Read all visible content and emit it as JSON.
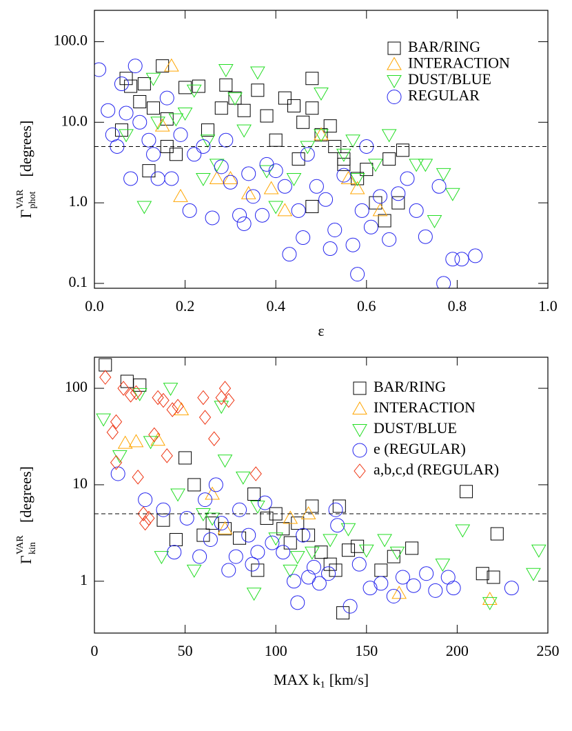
{
  "chart_data": [
    {
      "type": "scatter",
      "xlabel": "ε",
      "ylabel": {
        "text": "Γ",
        "sup": "VAR",
        "sub": "phot",
        "unit": "[degrees]"
      },
      "log_y": true,
      "xlim": [
        0,
        1
      ],
      "ylim": [
        0.087,
        245
      ],
      "xticks": [
        {
          "value": 0,
          "label": "0.0"
        },
        0.2,
        0.4,
        0.6,
        0.8,
        {
          "value": 1,
          "label": "1.0"
        }
      ],
      "yticks": [
        {
          "value": 0.1,
          "label": "0.1"
        },
        {
          "value": 1,
          "label": "1.0"
        },
        {
          "value": 10,
          "label": "10.0"
        },
        {
          "value": 100,
          "label": "100.0"
        }
      ],
      "reference_line": 5,
      "legend": "upper right",
      "series": [
        {
          "name": "BAR/RING",
          "color": "#000000",
          "marker": "square",
          "x": [
            0.06,
            0.07,
            0.08,
            0.1,
            0.11,
            0.13,
            0.15,
            0.16,
            0.16,
            0.18,
            0.2,
            0.23,
            0.25,
            0.28,
            0.29,
            0.31,
            0.33,
            0.36,
            0.38,
            0.4,
            0.42,
            0.44,
            0.45,
            0.46,
            0.48,
            0.48,
            0.5,
            0.52,
            0.53,
            0.55,
            0.58,
            0.6,
            0.62,
            0.64,
            0.65,
            0.67,
            0.68,
            0.48,
            0.12,
            0.55
          ],
          "values": [
            8,
            35,
            28,
            18,
            30,
            15,
            50,
            11,
            5,
            4,
            27,
            28,
            8,
            15,
            29,
            20,
            14,
            25,
            12,
            6,
            20,
            16,
            3.5,
            10,
            35,
            15,
            7,
            9,
            5,
            3,
            2,
            2.6,
            1,
            0.6,
            3.5,
            1,
            4.5,
            0.9,
            2.5,
            3.5
          ]
        },
        {
          "name": "INTERACTION",
          "color": "#ffa500",
          "marker": "triangle-up",
          "x": [
            0.17,
            0.19,
            0.15,
            0.27,
            0.3,
            0.34,
            0.39,
            0.42,
            0.5,
            0.56,
            0.63,
            0.58
          ],
          "values": [
            50,
            1.2,
            9,
            2,
            2,
            1.3,
            1.5,
            0.8,
            7,
            2,
            0.8,
            1.5
          ]
        },
        {
          "name": "DUST/BLUE",
          "color": "#22dd22",
          "marker": "triangle-down",
          "x": [
            0.07,
            0.11,
            0.13,
            0.14,
            0.2,
            0.22,
            0.25,
            0.29,
            0.31,
            0.33,
            0.36,
            0.38,
            0.4,
            0.44,
            0.47,
            0.5,
            0.5,
            0.55,
            0.57,
            0.58,
            0.62,
            0.65,
            0.71,
            0.73,
            0.77,
            0.79,
            0.24,
            0.27,
            0.18,
            0.75
          ],
          "values": [
            7,
            0.9,
            35,
            10,
            13,
            25,
            6,
            45,
            20,
            8,
            42,
            2.5,
            0.9,
            2,
            5,
            23,
            7,
            4,
            6,
            2,
            3,
            7,
            3,
            3,
            2.3,
            1.3,
            2,
            3,
            11,
            0.6
          ]
        },
        {
          "name": "REGULAR",
          "color": "#2222ee",
          "marker": "circle",
          "x": [
            0.01,
            0.03,
            0.04,
            0.05,
            0.06,
            0.07,
            0.08,
            0.09,
            0.1,
            0.12,
            0.13,
            0.14,
            0.16,
            0.17,
            0.19,
            0.21,
            0.22,
            0.24,
            0.26,
            0.28,
            0.29,
            0.3,
            0.32,
            0.33,
            0.34,
            0.35,
            0.37,
            0.38,
            0.4,
            0.42,
            0.43,
            0.45,
            0.46,
            0.47,
            0.49,
            0.51,
            0.52,
            0.53,
            0.55,
            0.57,
            0.58,
            0.59,
            0.61,
            0.63,
            0.65,
            0.67,
            0.69,
            0.71,
            0.73,
            0.76,
            0.77,
            0.79,
            0.81,
            0.84,
            0.6
          ],
          "values": [
            45,
            14,
            7,
            5,
            30,
            13,
            2,
            50,
            10,
            6,
            4,
            2,
            20,
            2,
            7,
            0.8,
            4,
            5,
            0.65,
            2.8,
            6,
            1.8,
            0.7,
            0.55,
            2.3,
            1.2,
            0.7,
            3,
            2.5,
            1.6,
            0.23,
            0.8,
            0.37,
            4,
            1.6,
            1.1,
            0.27,
            0.46,
            2.2,
            0.3,
            0.13,
            0.8,
            0.5,
            1.2,
            0.35,
            1.3,
            2,
            0.8,
            0.38,
            1.6,
            0.1,
            0.2,
            0.2,
            0.22,
            5
          ]
        }
      ]
    },
    {
      "type": "scatter",
      "xlabel": {
        "text": "MAX k",
        "sub": "1",
        "unit": "[km/s]"
      },
      "ylabel": {
        "text": "Γ",
        "sup": "VAR",
        "sub": "kin",
        "unit": "[degrees]"
      },
      "log_y": true,
      "xlim": [
        0,
        250
      ],
      "ylim": [
        0.29,
        210
      ],
      "xticks": [
        0,
        50,
        100,
        150,
        200,
        250
      ],
      "yticks": [
        1,
        10,
        100
      ],
      "reference_line": 5,
      "legend": "upper right",
      "series": [
        {
          "name": "BAR/RING",
          "color": "#000000",
          "marker": "square",
          "x": [
            6,
            18,
            25,
            38,
            45,
            50,
            55,
            60,
            65,
            72,
            80,
            88,
            90,
            95,
            100,
            104,
            108,
            112,
            118,
            120,
            125,
            130,
            133,
            135,
            137,
            140,
            145,
            158,
            165,
            175,
            205,
            214,
            220,
            222
          ],
          "values": [
            175,
            118,
            108,
            4.3,
            2.7,
            19,
            10,
            3,
            4,
            3.5,
            2.8,
            8,
            1.3,
            4.5,
            5,
            3.5,
            2.5,
            4,
            3,
            6,
            2,
            1.5,
            1.3,
            6,
            0.47,
            2.1,
            2.3,
            1.3,
            1.8,
            2.2,
            8.5,
            1.2,
            1.1,
            3.1
          ]
        },
        {
          "name": "INTERACTION",
          "color": "#ffa500",
          "marker": "triangle-up",
          "x": [
            17,
            23,
            35,
            48,
            65,
            72,
            108,
            118,
            168,
            218
          ],
          "values": [
            27,
            28,
            29,
            60,
            8,
            3.5,
            4.5,
            5,
            0.75,
            0.65
          ]
        },
        {
          "name": "DUST/BLUE",
          "color": "#22dd22",
          "marker": "triangle-down",
          "x": [
            5,
            14,
            25,
            31,
            37,
            42,
            46,
            55,
            60,
            65,
            70,
            72,
            82,
            88,
            90,
            100,
            108,
            112,
            120,
            130,
            140,
            150,
            160,
            167,
            192,
            203,
            218,
            242,
            245
          ],
          "values": [
            48,
            20,
            88,
            28,
            1.8,
            100,
            8,
            1.3,
            5,
            4.5,
            65,
            18,
            12,
            0.75,
            6,
            2.8,
            1.3,
            1.8,
            2,
            2.7,
            3.5,
            2.1,
            2.7,
            2,
            1.5,
            3.4,
            0.6,
            1.2,
            2.1
          ]
        },
        {
          "name": "e (REGULAR)",
          "color": "#2222ee",
          "marker": "circle",
          "x": [
            13,
            28,
            38,
            44,
            51,
            58,
            61,
            64,
            67,
            70,
            74,
            78,
            80,
            85,
            87,
            90,
            94,
            98,
            104,
            110,
            115,
            118,
            121,
            124,
            129,
            133,
            134,
            141,
            146,
            152,
            158,
            165,
            170,
            176,
            183,
            188,
            195,
            198,
            230,
            112
          ],
          "values": [
            13,
            7,
            5.5,
            2,
            4.5,
            1.8,
            7,
            2.7,
            10,
            4,
            1.3,
            1.8,
            5.5,
            3,
            1.5,
            2,
            6.5,
            2.5,
            2,
            1,
            3,
            1.1,
            1.4,
            0.95,
            1.2,
            5.5,
            3.8,
            0.55,
            1.5,
            0.85,
            0.95,
            0.7,
            1.1,
            0.9,
            1.2,
            0.8,
            1.1,
            0.85,
            0.85,
            0.6
          ]
        },
        {
          "name": "a,b,c,d (REGULAR)",
          "color": "#ee3311",
          "marker": "diamond",
          "x": [
            6,
            10,
            12,
            16,
            20,
            23,
            24,
            27,
            30,
            33,
            35,
            38,
            40,
            43,
            46,
            60,
            61,
            66,
            70,
            72,
            74,
            89,
            12,
            28
          ],
          "values": [
            130,
            35,
            45,
            100,
            85,
            90,
            12,
            5,
            4.5,
            33,
            80,
            75,
            20,
            60,
            65,
            80,
            50,
            30,
            80,
            100,
            75,
            13,
            17,
            4
          ]
        }
      ]
    }
  ]
}
